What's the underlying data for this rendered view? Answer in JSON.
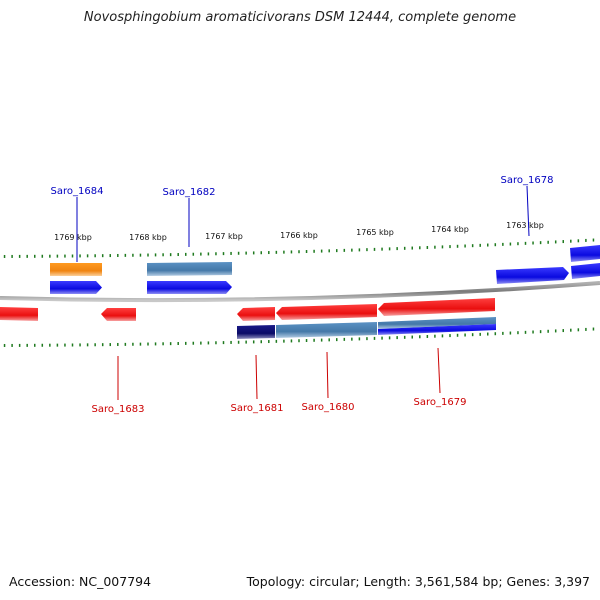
{
  "title": "Novosphingobium aromaticivorans DSM 12444, complete genome",
  "footer": {
    "accession": "Accession: NC_007794",
    "topology": "Topology: circular; Length: 3,561,584 bp; Genes: 3,397"
  },
  "colors": {
    "backbone": "#8a8a8a",
    "ticks": "#1f7a1f",
    "gene_forward": "#1010e0",
    "gene_reverse": "#ee1111",
    "gene_orange": "#f08a10",
    "gene_steel": "#4b82b4",
    "gene_navy": "#0c0c70",
    "label_forward": "#0000c0",
    "label_reverse": "#cc0000"
  },
  "scale_labels": [
    "1769 kbp",
    "1768 kbp",
    "1767 kbp",
    "1766 kbp",
    "1765 kbp",
    "1764 kbp",
    "1763 kbp"
  ],
  "gene_labels": {
    "forward": [
      "Saro_1684",
      "Saro_1682",
      "Saro_1678"
    ],
    "reverse": [
      "Saro_1683",
      "Saro_1681",
      "Saro_1680",
      "Saro_1679"
    ]
  }
}
